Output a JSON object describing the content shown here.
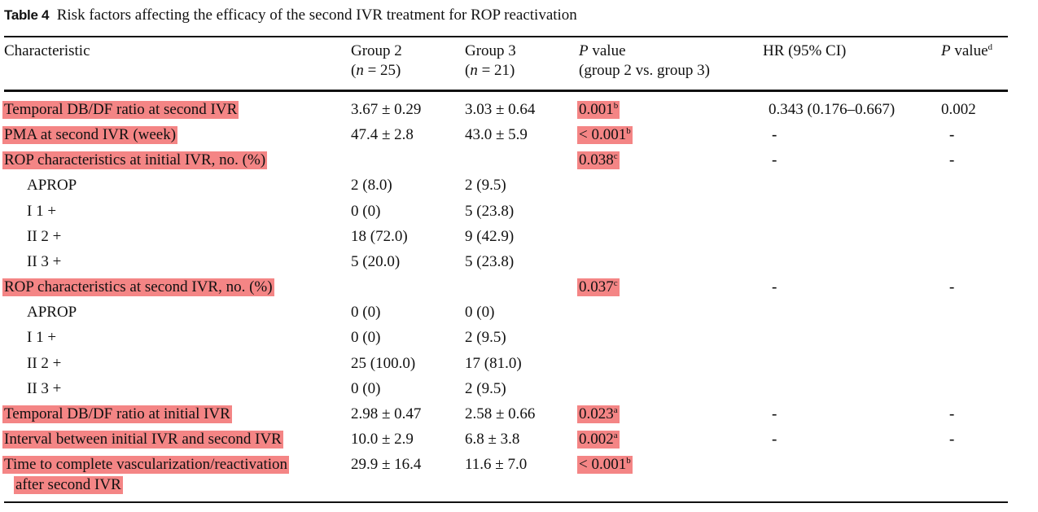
{
  "caption": {
    "label": "Table 4",
    "text": "Risk factors affecting the efficacy of the second IVR treatment for ROP reactivation"
  },
  "header": {
    "characteristic": "Characteristic",
    "group2": "Group 2",
    "group2_n": "(n = 25)",
    "group3": "Group 3",
    "group3_n": "(n = 21)",
    "pvalue_italic": "P",
    "pvalue_rest": " value",
    "pvalue_sub": "(group 2 vs. group 3)",
    "hr": "HR (95% CI)",
    "pvalue2_italic": "P",
    "pvalue2_rest": " value",
    "pvalue2_sup": "d"
  },
  "rows": [
    {
      "label": "Temporal DB/DF ratio at second IVR",
      "g2": "3.67 ± 0.29",
      "g3": "3.03 ± 0.64",
      "p": "0.001",
      "p_sup": "b",
      "hr": "0.343 (0.176–0.667)",
      "p2": "0.002"
    },
    {
      "label": "PMA at second IVR (week)",
      "g2": "47.4 ± 2.8",
      "g3": "43.0 ± 5.9",
      "p": " < 0.001",
      "p_sup": "b",
      "hr": "-",
      "p2": "-"
    },
    {
      "label": "ROP characteristics at initial IVR, no. (%)",
      "g2": "",
      "g3": "",
      "p": "0.038",
      "p_sup": "c",
      "hr": "-",
      "p2": "-"
    },
    {
      "label": "APROP",
      "g2": "2 (8.0)",
      "g3": "2 (9.5)"
    },
    {
      "label": "I 1 +",
      "g2": "0 (0)",
      "g3": "5 (23.8)"
    },
    {
      "label": "II 2 +",
      "g2": "18 (72.0)",
      "g3": "9 (42.9)"
    },
    {
      "label": "II 3 +",
      "g2": "5 (20.0)",
      "g3": "5 (23.8)"
    },
    {
      "label": "ROP characteristics at second IVR, no. (%)",
      "g2": "",
      "g3": "",
      "p": "0.037",
      "p_sup": "c",
      "hr": "-",
      "p2": "-"
    },
    {
      "label": "APROP",
      "g2": "0 (0)",
      "g3": "0 (0)"
    },
    {
      "label": "I 1 +",
      "g2": "0 (0)",
      "g3": "2 (9.5)"
    },
    {
      "label": "II 2 +",
      "g2": "25 (100.0)",
      "g3": "17 (81.0)"
    },
    {
      "label": "II 3 +",
      "g2": "0 (0)",
      "g3": "2 (9.5)"
    },
    {
      "label": "Temporal DB/DF ratio at initial IVR",
      "g2": "2.98 ± 0.47",
      "g3": "2.58 ± 0.66",
      "p": "0.023",
      "p_sup": "a",
      "hr": "-",
      "p2": "-"
    },
    {
      "label": "Interval between initial IVR and second IVR",
      "g2": "10.0 ± 2.9",
      "g3": "6.8 ± 3.8",
      "p": "0.002",
      "p_sup": "a",
      "hr": "-",
      "p2": "-"
    },
    {
      "label": "Time to complete vascularization/reactivation",
      "label_line2": "after second IVR",
      "g2": "29.9 ± 16.4",
      "g3": "11.6 ± 7.0",
      "p": " < 0.001",
      "p_sup": "b"
    }
  ]
}
